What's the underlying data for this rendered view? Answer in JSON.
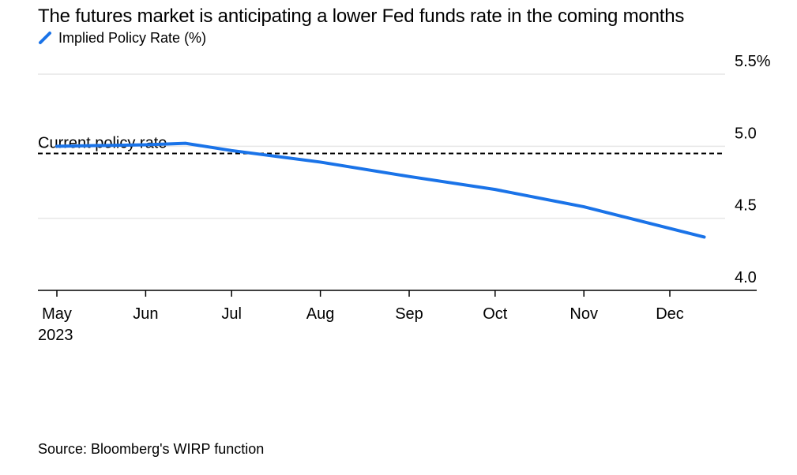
{
  "title": "The futures market is anticipating a lower Fed funds rate in the coming months",
  "source": "Source: Bloomberg's WIRP function",
  "colors": {
    "series": "#1a73e8",
    "grid": "#e6e6e6",
    "axis": "#000000"
  },
  "chart_data": {
    "type": "line",
    "title": "The futures market is anticipating a lower Fed funds rate in the coming months",
    "series": [
      {
        "name": "Implied Policy Rate (%)",
        "color": "#1a73e8",
        "x": [
          "2023-05-01",
          "2023-06-01",
          "2023-06-15",
          "2023-07-01",
          "2023-08-01",
          "2023-09-01",
          "2023-10-01",
          "2023-11-01",
          "2023-12-13"
        ],
        "values": [
          5.0,
          5.01,
          5.02,
          4.97,
          4.89,
          4.79,
          4.7,
          4.58,
          4.37
        ]
      }
    ],
    "reference_line": {
      "label": "Current policy rate",
      "value": 4.95,
      "style": "dashed"
    },
    "x_ticks": [
      "May",
      "Jun",
      "Jul",
      "Aug",
      "Sep",
      "Oct",
      "Nov",
      "Dec"
    ],
    "x_tick_dates": [
      "2023-05-01",
      "2023-06-01",
      "2023-07-01",
      "2023-08-01",
      "2023-09-01",
      "2023-10-01",
      "2023-11-01",
      "2023-12-01"
    ],
    "x_sublabel": "2023",
    "y_ticks": [
      "5.5%",
      "5.0",
      "4.5",
      "4.0"
    ],
    "y_tick_values": [
      5.5,
      5.0,
      4.5,
      4.0
    ],
    "ylim": [
      4.0,
      5.5
    ],
    "xlim": [
      "2023-04-23",
      "2023-12-31"
    ],
    "y_axis_side": "right",
    "grid": true,
    "legend_position": "top-left"
  }
}
